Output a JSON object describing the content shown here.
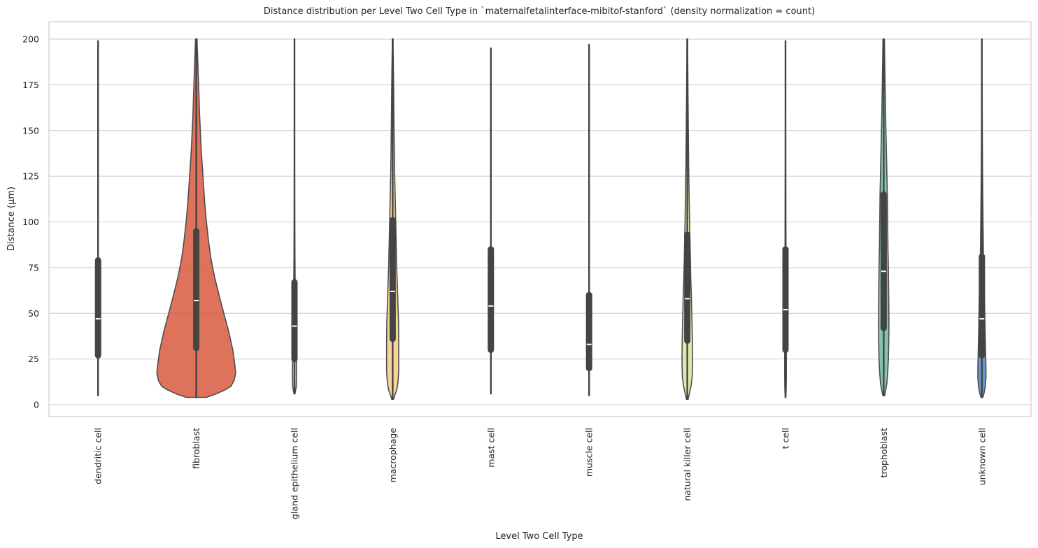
{
  "chart_data": {
    "type": "violin",
    "title": "Distance distribution per Level Two Cell Type in `maternalfetalinterface-mibitof-stanford` (density normalization = count)",
    "xlabel": "Level Two Cell Type",
    "ylabel": "Distance (µm)",
    "ylim": [
      -6,
      210
    ],
    "yticks": [
      0,
      25,
      50,
      75,
      100,
      125,
      150,
      175,
      200
    ],
    "grid": true,
    "categories": [
      "dendritic cell",
      "fibroblast",
      "gland epithelium cell",
      "macrophage",
      "mast cell",
      "muscle cell",
      "natural killer cell",
      "t cell",
      "trophoblast",
      "unknown cell"
    ],
    "series": [
      {
        "category": "dendritic cell",
        "color": "#e48a86",
        "min": 5,
        "q1": 27,
        "median": 47,
        "q3": 79,
        "max": 199,
        "whisker_low": 5,
        "whisker_high": 156,
        "density": [
          [
            5,
            0
          ],
          [
            200,
            0
          ]
        ]
      },
      {
        "category": "fibroblast",
        "color": "#d9593d",
        "min": 4,
        "q1": 31,
        "median": 57,
        "q3": 95,
        "max": 200,
        "whisker_low": 4,
        "whisker_high": 192,
        "density": [
          [
            4,
            0.25
          ],
          [
            6,
            0.5
          ],
          [
            8,
            0.7
          ],
          [
            10,
            0.85
          ],
          [
            13,
            0.93
          ],
          [
            17,
            0.97
          ],
          [
            22,
            0.95
          ],
          [
            30,
            0.9
          ],
          [
            40,
            0.8
          ],
          [
            50,
            0.68
          ],
          [
            60,
            0.56
          ],
          [
            70,
            0.45
          ],
          [
            80,
            0.36
          ],
          [
            90,
            0.3
          ],
          [
            100,
            0.25
          ],
          [
            110,
            0.21
          ],
          [
            120,
            0.18
          ],
          [
            130,
            0.15
          ],
          [
            140,
            0.12
          ],
          [
            150,
            0.1
          ],
          [
            160,
            0.08
          ],
          [
            170,
            0.065
          ],
          [
            180,
            0.05
          ],
          [
            190,
            0.035
          ],
          [
            198,
            0.02
          ],
          [
            200,
            0.02
          ]
        ]
      },
      {
        "category": "gland epithelium cell",
        "color": "#f1a765",
        "min": 6,
        "q1": 25,
        "median": 43,
        "q3": 67,
        "max": 200,
        "whisker_low": 6,
        "whisker_high": 131,
        "density": [
          [
            6,
            0.012
          ],
          [
            10,
            0.045
          ],
          [
            15,
            0.05
          ],
          [
            20,
            0.05
          ],
          [
            30,
            0.045
          ],
          [
            40,
            0.035
          ],
          [
            50,
            0.028
          ],
          [
            60,
            0.02
          ],
          [
            70,
            0.015
          ],
          [
            85,
            0.01
          ],
          [
            100,
            0.007
          ],
          [
            130,
            0.004
          ],
          [
            200,
            0.002
          ]
        ]
      },
      {
        "category": "macrophage",
        "color": "#f4cc86",
        "min": 3,
        "q1": 36,
        "median": 62,
        "q3": 101,
        "max": 200,
        "whisker_low": 3,
        "whisker_high": 196,
        "density": [
          [
            3,
            0.02
          ],
          [
            5,
            0.05
          ],
          [
            8,
            0.1
          ],
          [
            12,
            0.13
          ],
          [
            18,
            0.15
          ],
          [
            25,
            0.15
          ],
          [
            35,
            0.15
          ],
          [
            45,
            0.145
          ],
          [
            55,
            0.13
          ],
          [
            65,
            0.115
          ],
          [
            75,
            0.1
          ],
          [
            85,
            0.09
          ],
          [
            95,
            0.08
          ],
          [
            110,
            0.065
          ],
          [
            125,
            0.05
          ],
          [
            140,
            0.04
          ],
          [
            160,
            0.03
          ],
          [
            180,
            0.02
          ],
          [
            195,
            0.01
          ],
          [
            200,
            0.01
          ]
        ]
      },
      {
        "category": "mast cell",
        "color": "#f6e29c",
        "min": 6,
        "q1": 30,
        "median": 54,
        "q3": 85,
        "max": 195,
        "whisker_low": 6,
        "whisker_high": 166,
        "density": [
          [
            6,
            0
          ],
          [
            195,
            0
          ]
        ]
      },
      {
        "category": "muscle cell",
        "color": "#eeeaa5",
        "min": 5,
        "q1": 20,
        "median": 33,
        "q3": 60,
        "max": 197,
        "whisker_low": 5,
        "whisker_high": 121,
        "density": [
          [
            5,
            0
          ],
          [
            197,
            0
          ]
        ]
      },
      {
        "category": "natural killer cell",
        "color": "#d5e89e",
        "min": 3,
        "q1": 35,
        "median": 58,
        "q3": 93,
        "max": 200,
        "whisker_low": 3,
        "whisker_high": 181,
        "density": [
          [
            3,
            0.02
          ],
          [
            6,
            0.05
          ],
          [
            10,
            0.09
          ],
          [
            15,
            0.12
          ],
          [
            22,
            0.13
          ],
          [
            30,
            0.13
          ],
          [
            40,
            0.12
          ],
          [
            50,
            0.11
          ],
          [
            60,
            0.1
          ],
          [
            70,
            0.085
          ],
          [
            80,
            0.075
          ],
          [
            90,
            0.065
          ],
          [
            100,
            0.055
          ],
          [
            115,
            0.045
          ],
          [
            130,
            0.035
          ],
          [
            150,
            0.025
          ],
          [
            170,
            0.018
          ],
          [
            190,
            0.01
          ],
          [
            200,
            0.008
          ]
        ]
      },
      {
        "category": "t cell",
        "color": "#9ed1a4",
        "min": 4,
        "q1": 30,
        "median": 52,
        "q3": 85,
        "max": 199,
        "whisker_low": 4,
        "whisker_high": 169,
        "density": [
          [
            4,
            0.005
          ],
          [
            8,
            0.015
          ],
          [
            15,
            0.02
          ],
          [
            25,
            0.02
          ],
          [
            40,
            0.018
          ],
          [
            60,
            0.015
          ],
          [
            80,
            0.012
          ],
          [
            100,
            0.009
          ],
          [
            130,
            0.006
          ],
          [
            160,
            0.004
          ],
          [
            199,
            0.002
          ]
        ]
      },
      {
        "category": "trophoblast",
        "color": "#6dbaa4",
        "min": 5,
        "q1": 42,
        "median": 73,
        "q3": 115,
        "max": 200,
        "whisker_low": 5,
        "whisker_high": 200,
        "density": [
          [
            5,
            0.02
          ],
          [
            8,
            0.05
          ],
          [
            12,
            0.08
          ],
          [
            18,
            0.1
          ],
          [
            25,
            0.115
          ],
          [
            35,
            0.125
          ],
          [
            45,
            0.13
          ],
          [
            55,
            0.125
          ],
          [
            65,
            0.12
          ],
          [
            75,
            0.115
          ],
          [
            85,
            0.105
          ],
          [
            95,
            0.1
          ],
          [
            105,
            0.095
          ],
          [
            115,
            0.09
          ],
          [
            125,
            0.08
          ],
          [
            135,
            0.07
          ],
          [
            145,
            0.06
          ],
          [
            155,
            0.05
          ],
          [
            165,
            0.042
          ],
          [
            175,
            0.035
          ],
          [
            185,
            0.028
          ],
          [
            195,
            0.02
          ],
          [
            200,
            0.018
          ]
        ]
      },
      {
        "category": "unknown cell",
        "color": "#4d8ac0",
        "min": 4,
        "q1": 27,
        "median": 47,
        "q3": 81,
        "max": 200,
        "whisker_low": 4,
        "whisker_high": 160,
        "density": [
          [
            4,
            0.02
          ],
          [
            6,
            0.05
          ],
          [
            10,
            0.085
          ],
          [
            15,
            0.1
          ],
          [
            20,
            0.1
          ],
          [
            30,
            0.09
          ],
          [
            40,
            0.08
          ],
          [
            50,
            0.07
          ],
          [
            60,
            0.06
          ],
          [
            70,
            0.05
          ],
          [
            80,
            0.04
          ],
          [
            90,
            0.033
          ],
          [
            100,
            0.027
          ],
          [
            115,
            0.02
          ],
          [
            130,
            0.015
          ],
          [
            150,
            0.01
          ],
          [
            175,
            0.006
          ],
          [
            200,
            0.003
          ]
        ]
      }
    ]
  }
}
